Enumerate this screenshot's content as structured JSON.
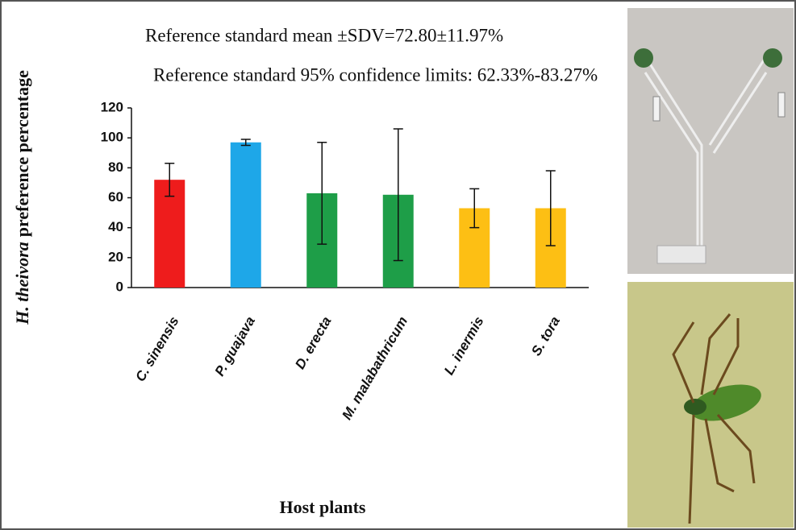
{
  "chart_data": {
    "type": "bar",
    "annotations": [
      "Reference standard mean ±SDV=72.80±11.97%",
      "Reference standard 95% confidence limits: 62.33%-83.27%"
    ],
    "y_label_species": "H. theivora",
    "y_label": "preference percentage",
    "x_label": "Host plants",
    "categories": [
      "C. sinensis",
      "P. guajava",
      "D. erecta",
      "M. malabathricum",
      "L. inermis",
      "S. tora"
    ],
    "values": [
      72,
      97,
      63,
      62,
      53,
      53
    ],
    "errors": [
      11,
      2,
      34,
      44,
      13,
      25
    ],
    "colors": [
      "#ee1c1c",
      "#1ea7e8",
      "#1e9e48",
      "#1e9e48",
      "#fdbf14",
      "#fdbf14"
    ],
    "ylim": [
      0,
      120
    ],
    "yticks": [
      0,
      20,
      40,
      60,
      80,
      100,
      120
    ],
    "grid": false
  }
}
